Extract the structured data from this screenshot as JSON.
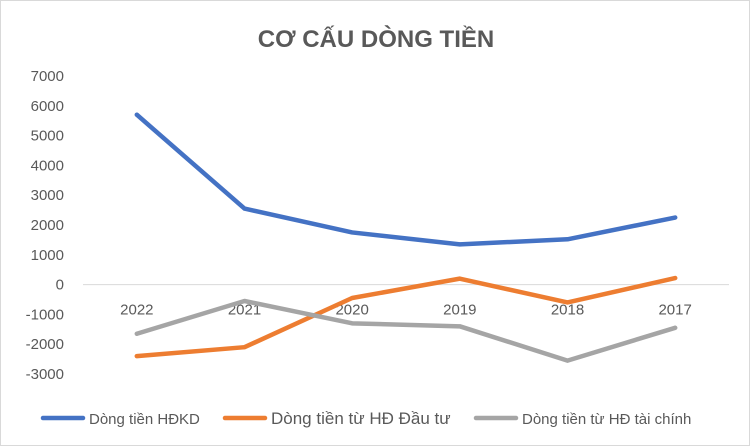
{
  "chart_data": {
    "type": "line",
    "title": "CƠ CẤU DÒNG TIỀN",
    "xlabel": "",
    "ylabel": "",
    "categories": [
      "2022",
      "2021",
      "2020",
      "2019",
      "2018",
      "2017"
    ],
    "ylim": [
      -3000,
      7000
    ],
    "yticks": [
      7000,
      6000,
      5000,
      4000,
      3000,
      2000,
      1000,
      0,
      -1000,
      -2000,
      -3000
    ],
    "ytick_labels": [
      "7000",
      "6000",
      "5000",
      "4000",
      "3000",
      "2000",
      "1000",
      "0",
      "-1000",
      "-2000",
      "-3000"
    ],
    "grid": false,
    "legend_position": "bottom",
    "series": [
      {
        "name": "Dòng tiền HĐKD",
        "color": "#4472C4",
        "values": [
          5700,
          2550,
          1750,
          1350,
          1520,
          2250
        ]
      },
      {
        "name": "Dòng tiền từ HĐ Đầu tư",
        "color": "#ED7D31",
        "values": [
          -2400,
          -2100,
          -450,
          200,
          -600,
          220
        ]
      },
      {
        "name": "Dòng tiền từ HĐ tài chính",
        "color": "#A5A5A5",
        "values": [
          -1650,
          -550,
          -1300,
          -1400,
          -2550,
          -1450
        ]
      }
    ]
  }
}
